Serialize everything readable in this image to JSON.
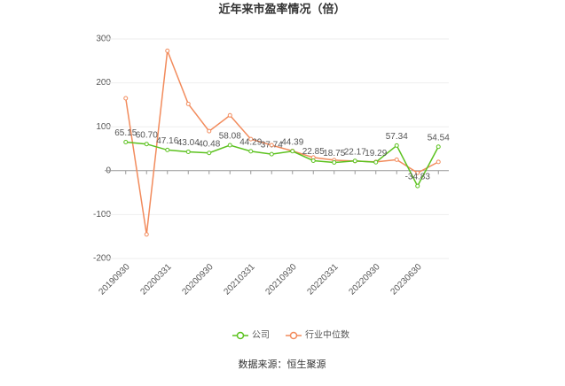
{
  "chart_data": {
    "type": "line",
    "title": "近年来市盈率情况（倍）",
    "categories": [
      "20190930",
      null,
      "20200331",
      null,
      "20200930",
      null,
      "20210331",
      null,
      "20210930",
      null,
      "20220331",
      null,
      "20220930",
      null,
      "20230630",
      null
    ],
    "series": [
      {
        "name": "公司",
        "color": "#5cc21f",
        "values": [
          65.15,
          60.7,
          47.16,
          43.04,
          40.48,
          58.08,
          44.29,
          37.74,
          44.39,
          22.85,
          18.75,
          22.17,
          19.29,
          57.34,
          -34.83,
          54.54
        ],
        "value_labels": [
          "65.15",
          "60.70",
          "47.16",
          "43.04",
          "40.48",
          "58.08",
          "44.29",
          "37.74",
          "44.39",
          "22.85",
          "18.75",
          "22.17",
          "19.29",
          "57.34",
          "-34.83",
          "54.54"
        ]
      },
      {
        "name": "行业中位数",
        "color": "#f28b5c",
        "values": [
          165,
          -145,
          273,
          152,
          90,
          126,
          72,
          58,
          45,
          30,
          24,
          22,
          20,
          25,
          -5,
          20
        ]
      }
    ],
    "ylim": [
      -200,
      300
    ],
    "yticks": [
      -200,
      -100,
      0,
      100,
      200,
      300
    ],
    "grid": true,
    "source": "数据来源：恒生聚源"
  }
}
